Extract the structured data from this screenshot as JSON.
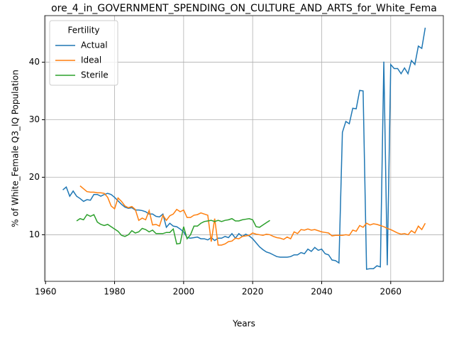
{
  "chart_data": {
    "type": "line",
    "title": "ore_4_in_GOVERNMENT_SPENDING_ON_CULTURE_AND_ARTS_for_White_Fema",
    "xlabel": "Years",
    "ylabel": "% of White_Female Q3_IQ Population",
    "legend_title": "Fertility",
    "legend": "upper left",
    "grid": true,
    "x": [
      1965,
      1966,
      1967,
      1968,
      1969,
      1970,
      1971,
      1972,
      1973,
      1974,
      1975,
      1976,
      1977,
      1978,
      1979,
      1980,
      1981,
      1982,
      1983,
      1984,
      1985,
      1986,
      1987,
      1988,
      1989,
      1990,
      1991,
      1992,
      1993,
      1994,
      1995,
      1996,
      1997,
      1998,
      1999,
      2000,
      2001,
      2002,
      2003,
      2004,
      2005,
      2006,
      2007,
      2008,
      2009,
      2010,
      2011,
      2012,
      2013,
      2014,
      2015,
      2016,
      2017,
      2018,
      2019,
      2020,
      2021,
      2022,
      2023,
      2024,
      2025,
      2026,
      2027,
      2028,
      2029,
      2030,
      2031,
      2032,
      2033,
      2034,
      2035,
      2036,
      2037,
      2038,
      2039,
      2040,
      2041,
      2042,
      2043,
      2044,
      2045,
      2046,
      2047,
      2048,
      2049,
      2050,
      2051,
      2052,
      2053,
      2054,
      2055,
      2056,
      2057,
      2058,
      2059,
      2060,
      2061,
      2062,
      2063,
      2064,
      2065,
      2066,
      2067,
      2068,
      2069,
      2070
    ],
    "series": [
      {
        "name": "Actual",
        "color": "#1f77b4",
        "values": [
          17.8,
          18.3,
          16.7,
          17.6,
          16.7,
          16.3,
          15.8,
          16.1,
          16.0,
          17.0,
          17.0,
          16.7,
          17.0,
          17.2,
          17.0,
          16.5,
          15.9,
          15.3,
          14.8,
          14.6,
          14.7,
          14.3,
          14.3,
          14.2,
          14.0,
          13.6,
          13.6,
          13.2,
          13.1,
          13.6,
          11.3,
          12.0,
          11.5,
          11.4,
          11.0,
          10.5,
          9.5,
          9.4,
          9.5,
          9.6,
          9.3,
          9.3,
          9.1,
          9.5,
          9.0,
          9.4,
          9.4,
          9.7,
          9.5,
          10.2,
          9.4,
          10.2,
          9.7,
          10.1,
          9.8,
          9.3,
          8.6,
          7.9,
          7.4,
          7.0,
          6.8,
          6.5,
          6.2,
          6.1,
          6.1,
          6.1,
          6.2,
          6.5,
          6.5,
          6.9,
          6.7,
          7.5,
          7.1,
          7.8,
          7.3,
          7.5,
          6.7,
          6.5,
          5.6,
          5.5,
          5.1,
          27.8,
          29.7,
          29.3,
          32.0,
          31.9,
          35.1,
          35.0,
          4.0,
          4.1,
          4.1,
          4.6,
          4.4,
          40.1,
          4.7,
          39.6,
          38.9,
          38.9,
          38.0,
          39.0,
          38.0,
          40.3,
          39.6,
          42.8,
          42.4,
          46.0
        ]
      },
      {
        "name": "Ideal",
        "color": "#ff7f0e",
        "values": [
          null,
          null,
          null,
          null,
          null,
          18.5,
          18.0,
          17.5,
          17.4,
          17.4,
          17.3,
          17.3,
          17.2,
          16.5,
          15.0,
          14.5,
          16.4,
          15.8,
          15.0,
          14.7,
          14.9,
          14.4,
          12.5,
          12.9,
          12.6,
          14.2,
          11.7,
          11.8,
          11.5,
          13.4,
          12.5,
          13.3,
          13.6,
          14.4,
          14.0,
          14.3,
          13.0,
          13.0,
          13.4,
          13.5,
          13.8,
          13.6,
          13.4,
          8.8,
          12.8,
          8.2,
          8.2,
          8.4,
          8.8,
          8.9,
          9.4,
          9.3,
          9.7,
          9.8,
          9.9,
          10.3,
          10.1,
          10.0,
          9.9,
          10.1,
          10.0,
          9.7,
          9.5,
          9.4,
          9.2,
          9.6,
          9.3,
          10.5,
          10.2,
          10.9,
          10.8,
          11.0,
          10.8,
          10.9,
          10.7,
          10.5,
          10.4,
          10.3,
          9.8,
          9.9,
          9.9,
          9.9,
          10.0,
          9.9,
          10.8,
          10.6,
          11.6,
          11.3,
          12.0,
          11.7,
          11.9,
          11.8,
          11.6,
          11.4,
          11.1,
          10.9,
          10.6,
          10.3,
          10.1,
          10.2,
          10.0,
          10.7,
          10.3,
          11.5,
          10.9,
          12.0
        ]
      },
      {
        "name": "Sterile",
        "color": "#2ca02c",
        "values": [
          null,
          null,
          null,
          null,
          12.4,
          12.8,
          12.6,
          13.5,
          13.2,
          13.5,
          12.2,
          11.8,
          11.6,
          11.8,
          11.4,
          11.0,
          10.6,
          9.9,
          9.7,
          10.0,
          10.7,
          10.3,
          10.5,
          11.1,
          10.9,
          10.5,
          10.8,
          10.2,
          10.2,
          10.2,
          10.4,
          10.4,
          11.0,
          8.4,
          8.5,
          11.4,
          9.3,
          10.0,
          11.5,
          11.5,
          12.0,
          12.3,
          12.4,
          12.5,
          12.3,
          12.5,
          12.3,
          12.5,
          12.6,
          12.8,
          12.4,
          12.4,
          12.6,
          12.7,
          12.8,
          12.6,
          11.4,
          11.3,
          11.7,
          12.1,
          12.5,
          null,
          null,
          null,
          null,
          null,
          null,
          null,
          null,
          null,
          null,
          null,
          null,
          null,
          null,
          null,
          null,
          null,
          null,
          null,
          null,
          null,
          null,
          null,
          null,
          null,
          null,
          null,
          null,
          null,
          null,
          null,
          null,
          null,
          null,
          null,
          null,
          null,
          null,
          null,
          null,
          null,
          null,
          null,
          null,
          null
        ]
      }
    ],
    "xlim": [
      1959.75,
      2075.25
    ],
    "xticks": [
      1960,
      1980,
      2000,
      2020,
      2040,
      2060
    ],
    "ylim": [
      1.9,
      48.1
    ],
    "yticks": [
      10,
      20,
      30,
      40
    ]
  }
}
